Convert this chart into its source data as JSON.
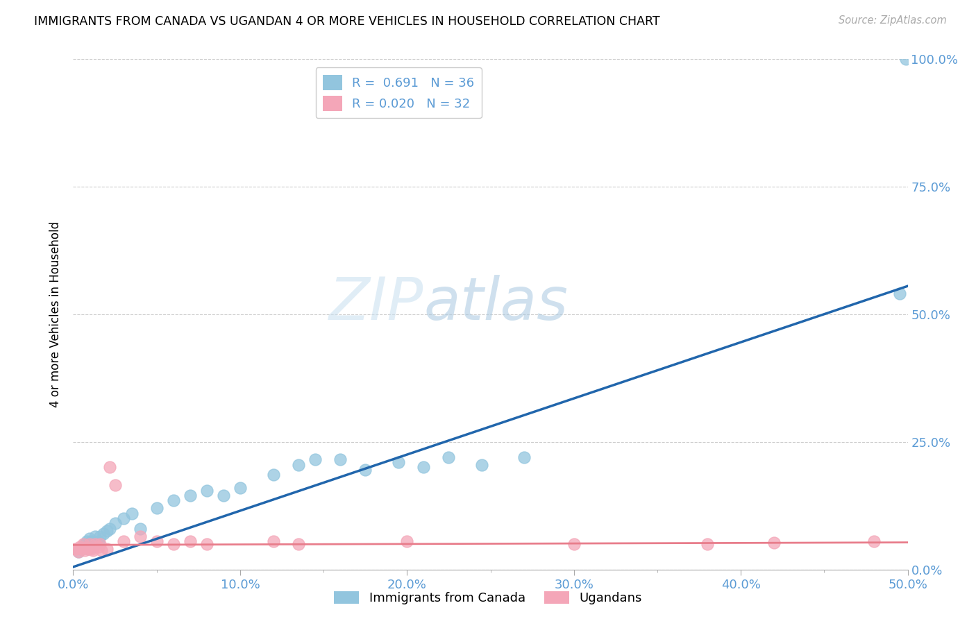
{
  "title": "IMMIGRANTS FROM CANADA VS UGANDAN 4 OR MORE VEHICLES IN HOUSEHOLD CORRELATION CHART",
  "source": "Source: ZipAtlas.com",
  "tick_color": "#5b9bd5",
  "ylabel": "4 or more Vehicles in Household",
  "xlim": [
    0.0,
    0.5
  ],
  "ylim": [
    0.0,
    1.0
  ],
  "xtick_labels": [
    "0.0%",
    "",
    "",
    "",
    "",
    "",
    "",
    "",
    "",
    "",
    "10.0%",
    "",
    "",
    "",
    "",
    "",
    "",
    "",
    "",
    "",
    "20.0%",
    "",
    "",
    "",
    "",
    "",
    "",
    "",
    "",
    "",
    "30.0%",
    "",
    "",
    "",
    "",
    "",
    "",
    "",
    "",
    "",
    "40.0%",
    "",
    "",
    "",
    "",
    "",
    "",
    "",
    "",
    "",
    "50.0%"
  ],
  "xtick_vals": [
    0.0,
    0.01,
    0.02,
    0.03,
    0.04,
    0.05,
    0.06,
    0.07,
    0.08,
    0.09,
    0.1,
    0.11,
    0.12,
    0.13,
    0.14,
    0.15,
    0.16,
    0.17,
    0.18,
    0.19,
    0.2,
    0.21,
    0.22,
    0.23,
    0.24,
    0.25,
    0.26,
    0.27,
    0.28,
    0.29,
    0.3,
    0.31,
    0.32,
    0.33,
    0.34,
    0.35,
    0.36,
    0.37,
    0.38,
    0.39,
    0.4,
    0.41,
    0.42,
    0.43,
    0.44,
    0.45,
    0.46,
    0.47,
    0.48,
    0.49,
    0.5
  ],
  "ytick_labels_right": [
    "100.0%",
    "75.0%",
    "50.0%",
    "25.0%",
    "0.0%"
  ],
  "ytick_vals": [
    1.0,
    0.75,
    0.5,
    0.25,
    0.0
  ],
  "blue_R": 0.691,
  "blue_N": 36,
  "pink_R": 0.02,
  "pink_N": 32,
  "blue_color": "#92c5de",
  "pink_color": "#f4a6b8",
  "blue_line_color": "#2166ac",
  "pink_line_color": "#e87d8b",
  "legend_label_blue": "Immigrants from Canada",
  "legend_label_pink": "Ugandans",
  "watermark_zip": "ZIP",
  "watermark_atlas": "atlas",
  "blue_scatter_x": [
    0.003,
    0.005,
    0.007,
    0.008,
    0.009,
    0.01,
    0.011,
    0.012,
    0.013,
    0.015,
    0.016,
    0.018,
    0.02,
    0.022,
    0.025,
    0.03,
    0.035,
    0.04,
    0.05,
    0.06,
    0.07,
    0.08,
    0.09,
    0.1,
    0.12,
    0.135,
    0.145,
    0.16,
    0.175,
    0.195,
    0.21,
    0.225,
    0.245,
    0.27,
    0.495,
    0.499
  ],
  "blue_scatter_y": [
    0.035,
    0.04,
    0.05,
    0.055,
    0.04,
    0.06,
    0.055,
    0.045,
    0.065,
    0.055,
    0.065,
    0.07,
    0.075,
    0.08,
    0.09,
    0.1,
    0.11,
    0.08,
    0.12,
    0.135,
    0.145,
    0.155,
    0.145,
    0.16,
    0.185,
    0.205,
    0.215,
    0.215,
    0.195,
    0.21,
    0.2,
    0.22,
    0.205,
    0.22,
    0.54,
    1.0
  ],
  "pink_scatter_x": [
    0.001,
    0.002,
    0.003,
    0.004,
    0.005,
    0.006,
    0.007,
    0.008,
    0.009,
    0.01,
    0.011,
    0.012,
    0.013,
    0.015,
    0.016,
    0.017,
    0.02,
    0.022,
    0.025,
    0.03,
    0.04,
    0.05,
    0.06,
    0.07,
    0.08,
    0.12,
    0.135,
    0.2,
    0.3,
    0.38,
    0.42,
    0.48
  ],
  "pink_scatter_y": [
    0.04,
    0.04,
    0.035,
    0.045,
    0.04,
    0.05,
    0.038,
    0.042,
    0.04,
    0.05,
    0.04,
    0.038,
    0.05,
    0.045,
    0.05,
    0.038,
    0.04,
    0.2,
    0.165,
    0.055,
    0.065,
    0.055,
    0.05,
    0.055,
    0.05,
    0.055,
    0.05,
    0.055,
    0.05,
    0.05,
    0.052,
    0.055
  ],
  "blue_line_x": [
    0.0,
    0.5
  ],
  "blue_line_y": [
    0.005,
    0.555
  ],
  "pink_line_x": [
    0.0,
    0.5
  ],
  "pink_line_y": [
    0.048,
    0.053
  ]
}
